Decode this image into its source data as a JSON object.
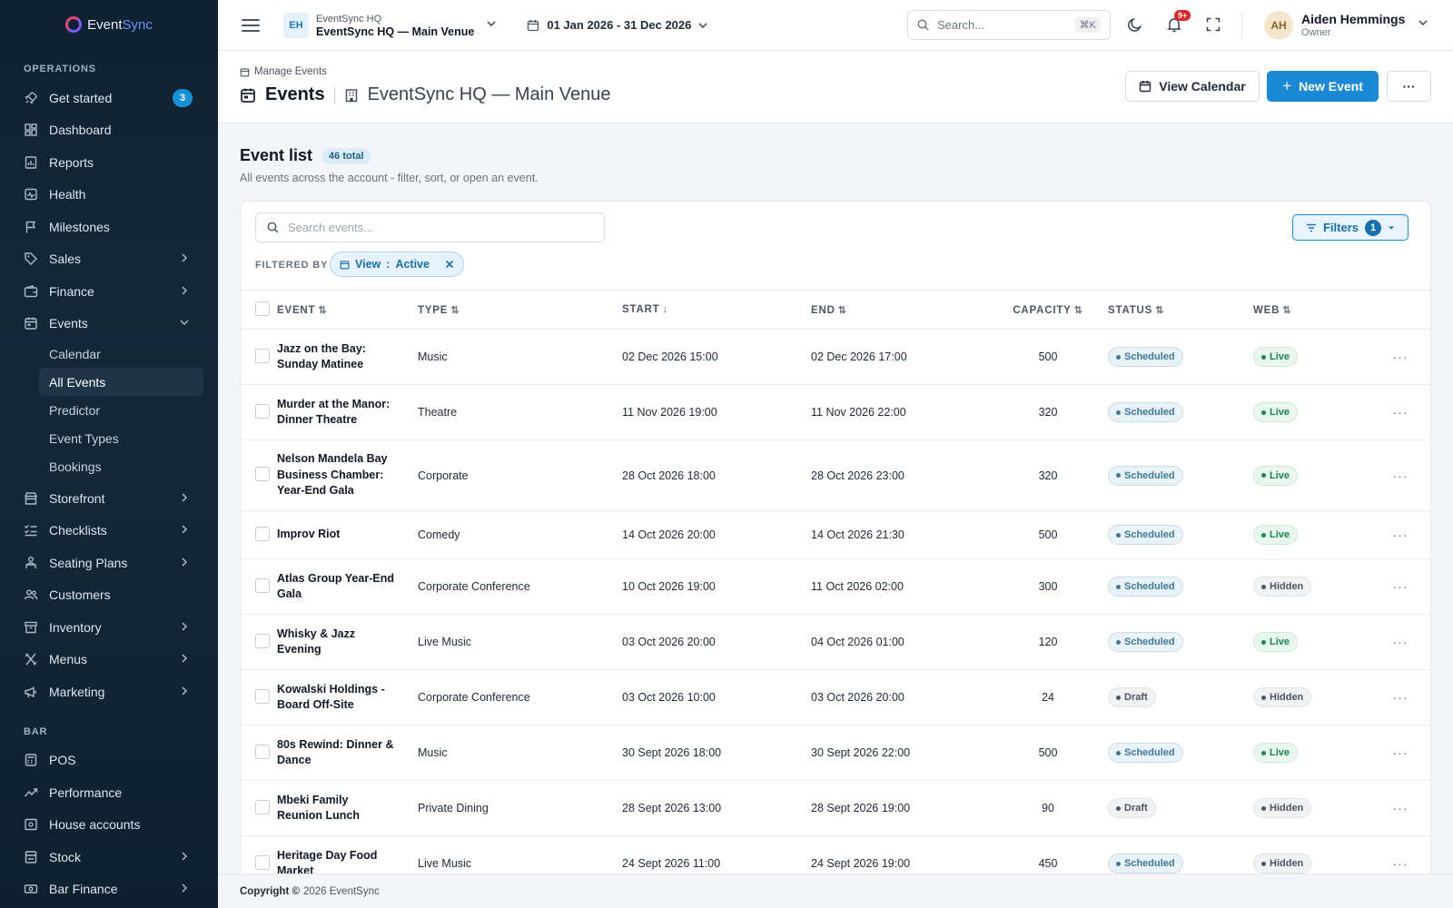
{
  "brand": {
    "name_a": "Event",
    "name_b": "Sync"
  },
  "sidebar": {
    "operations_label": "OPERATIONS",
    "bar_label": "BAR",
    "items": [
      {
        "label": "Get started",
        "icon": "rocket-icon",
        "badge": "3"
      },
      {
        "label": "Dashboard",
        "icon": "dashboard-icon"
      },
      {
        "label": "Reports",
        "icon": "reports-icon"
      },
      {
        "label": "Health",
        "icon": "health-icon"
      },
      {
        "label": "Milestones",
        "icon": "flag-icon"
      },
      {
        "label": "Sales",
        "icon": "tag-icon"
      },
      {
        "label": "Finance",
        "icon": "wallet-icon"
      },
      {
        "label": "Events",
        "icon": "calendar-icon"
      }
    ],
    "event_sub": [
      "Calendar",
      "All Events",
      "Predictor",
      "Event Types",
      "Bookings"
    ],
    "items_after": [
      {
        "label": "Storefront",
        "icon": "store-icon"
      },
      {
        "label": "Checklists",
        "icon": "checklist-icon"
      },
      {
        "label": "Seating Plans",
        "icon": "seat-icon"
      },
      {
        "label": "Customers",
        "icon": "users-icon"
      },
      {
        "label": "Inventory",
        "icon": "box-icon"
      },
      {
        "label": "Menus",
        "icon": "utensils-icon"
      },
      {
        "label": "Marketing",
        "icon": "megaphone-icon"
      }
    ],
    "bar_items": [
      {
        "label": "POS",
        "icon": "pos-icon"
      },
      {
        "label": "Performance",
        "icon": "trend-icon"
      },
      {
        "label": "House accounts",
        "icon": "ledger-icon"
      },
      {
        "label": "Stock",
        "icon": "stock-icon"
      },
      {
        "label": "Bar Finance",
        "icon": "cash-icon"
      }
    ]
  },
  "topbar": {
    "venue_initials": "EH",
    "venue_org": "EventSync HQ",
    "venue_name": "EventSync HQ — Main Venue",
    "date_range": "01 Jan 2026 - 31 Dec 2026",
    "search_placeholder": "Search...",
    "search_kbd": "⌘K",
    "notif_count": "9+",
    "user_initials": "AH",
    "user_name": "Aiden Hemmings",
    "user_role": "Owner"
  },
  "page": {
    "breadcrumb": "Manage Events",
    "title": "Events",
    "venue": "EventSync HQ — Main Venue",
    "view_calendar": "View Calendar",
    "new_event": "New Event",
    "more": "···"
  },
  "list": {
    "title": "Event list",
    "total": "46 total",
    "subtitle": "All events across the account - filter, sort, or open an event.",
    "search_placeholder": "Search events...",
    "filters_label": "Filters",
    "filters_count": "1",
    "filtered_by": "FILTERED BY",
    "chip_key": "View",
    "chip_sep": ":",
    "chip_value": "Active",
    "columns": {
      "event": "EVENT",
      "type": "TYPE",
      "start": "START",
      "end": "END",
      "capacity": "CAPACITY",
      "status": "STATUS",
      "web": "WEB"
    },
    "rows": [
      {
        "name": "Jazz on the Bay: Sunday Matinee",
        "type": "Music",
        "start": "02 Dec 2026 15:00",
        "end": "02 Dec 2026 17:00",
        "capacity": "500",
        "status": "Scheduled",
        "web": "Live"
      },
      {
        "name": "Murder at the Manor: Dinner Theatre",
        "type": "Theatre",
        "start": "11 Nov 2026 19:00",
        "end": "11 Nov 2026 22:00",
        "capacity": "320",
        "status": "Scheduled",
        "web": "Live"
      },
      {
        "name": "Nelson Mandela Bay Business Chamber: Year-End Gala",
        "type": "Corporate",
        "start": "28 Oct 2026 18:00",
        "end": "28 Oct 2026 23:00",
        "capacity": "320",
        "status": "Scheduled",
        "web": "Live"
      },
      {
        "name": "Improv Riot",
        "type": "Comedy",
        "start": "14 Oct 2026 20:00",
        "end": "14 Oct 2026 21:30",
        "capacity": "500",
        "status": "Scheduled",
        "web": "Live"
      },
      {
        "name": "Atlas Group Year-End Gala",
        "type": "Corporate Conference",
        "start": "10 Oct 2026 19:00",
        "end": "11 Oct 2026 02:00",
        "capacity": "300",
        "status": "Scheduled",
        "web": "Hidden"
      },
      {
        "name": "Whisky & Jazz Evening",
        "type": "Live Music",
        "start": "03 Oct 2026 20:00",
        "end": "04 Oct 2026 01:00",
        "capacity": "120",
        "status": "Scheduled",
        "web": "Live"
      },
      {
        "name": "Kowalski Holdings - Board Off-Site",
        "type": "Corporate Conference",
        "start": "03 Oct 2026 10:00",
        "end": "03 Oct 2026 20:00",
        "capacity": "24",
        "status": "Draft",
        "web": "Hidden"
      },
      {
        "name": "80s Rewind: Dinner & Dance",
        "type": "Music",
        "start": "30 Sept 2026 18:00",
        "end": "30 Sept 2026 22:00",
        "capacity": "500",
        "status": "Scheduled",
        "web": "Live"
      },
      {
        "name": "Mbeki Family Reunion Lunch",
        "type": "Private Dining",
        "start": "28 Sept 2026 13:00",
        "end": "28 Sept 2026 19:00",
        "capacity": "90",
        "status": "Draft",
        "web": "Hidden"
      },
      {
        "name": "Heritage Day Food Market",
        "type": "Live Music",
        "start": "24 Sept 2026 11:00",
        "end": "24 Sept 2026 19:00",
        "capacity": "450",
        "status": "Scheduled",
        "web": "Hidden"
      }
    ]
  },
  "footer": {
    "copyright": "Copyright ©",
    "text": "2026 EventSync"
  }
}
